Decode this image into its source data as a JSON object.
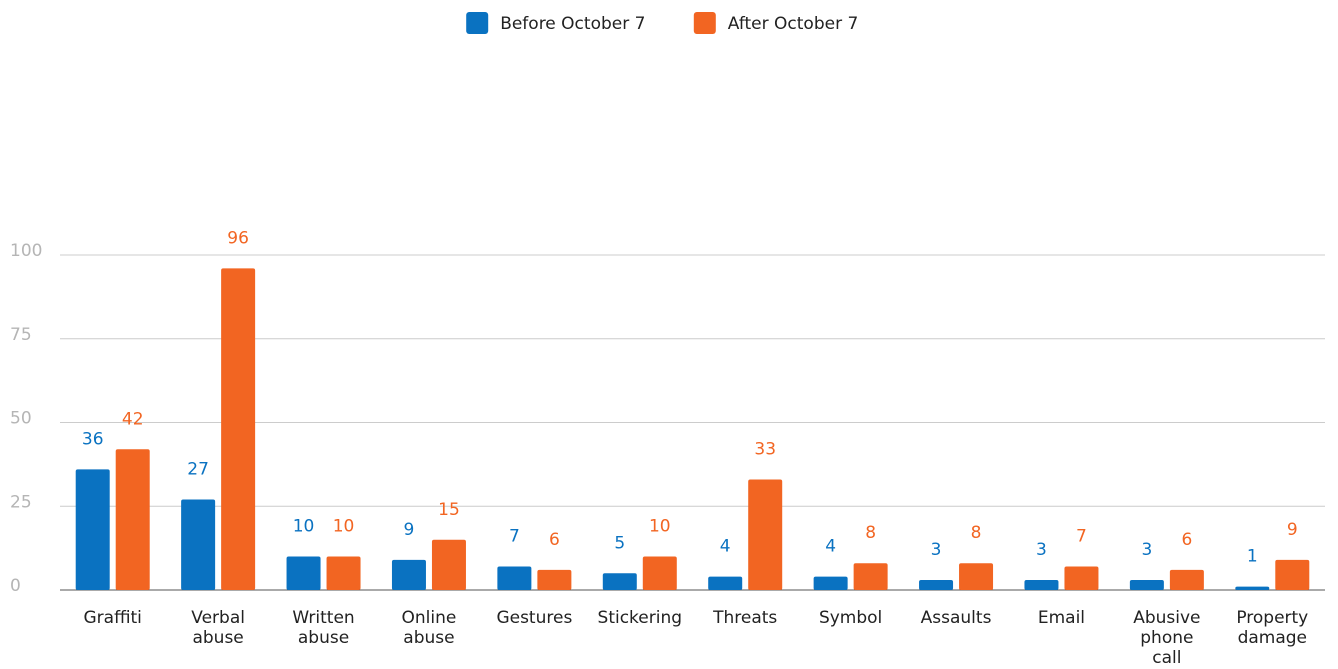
{
  "chart_data": {
    "type": "bar",
    "categories": [
      "Graffiti",
      "Verbal abuse",
      "Written abuse",
      "Online abuse",
      "Gestures",
      "Stickering",
      "Threats",
      "Symbol",
      "Assaults",
      "Email",
      "Abusive phone call",
      "Property damage"
    ],
    "series": [
      {
        "name": "Before October 7",
        "color": "#0a72c1",
        "values": [
          36,
          27,
          10,
          9,
          7,
          5,
          4,
          4,
          3,
          3,
          3,
          1
        ]
      },
      {
        "name": "After October 7",
        "color": "#f26522",
        "values": [
          42,
          96,
          10,
          15,
          6,
          10,
          33,
          8,
          8,
          7,
          6,
          9
        ]
      }
    ],
    "ylim": [
      0,
      100
    ],
    "yticks": [
      0,
      25,
      50,
      75,
      100
    ],
    "grid": true,
    "legend": "top"
  }
}
